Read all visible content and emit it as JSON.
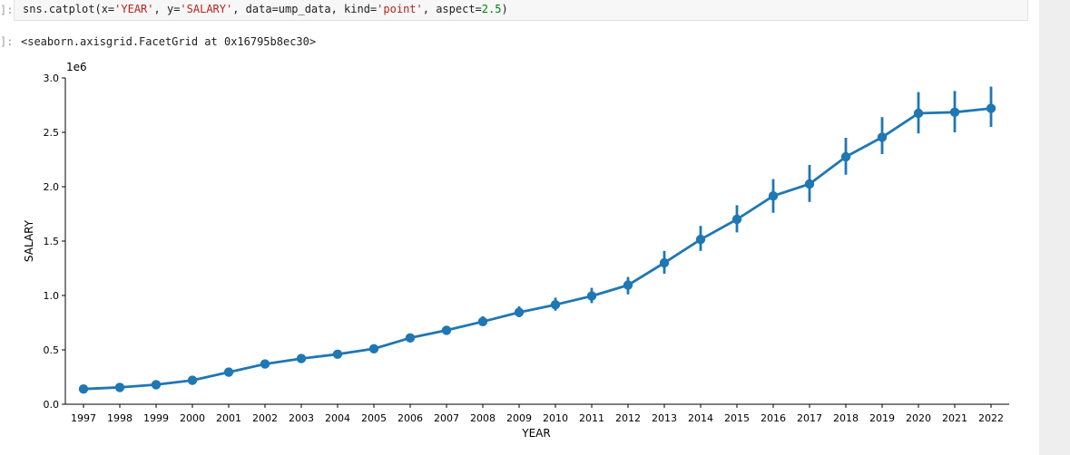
{
  "notebook": {
    "input_prompt": "]:",
    "output_prompt": "]:",
    "code": {
      "func": "sns.catplot(",
      "x_kw": "x=",
      "x_val": "'YEAR'",
      "y_kw": ", y=",
      "y_val": "'SALARY'",
      "data_kw": ", data=ump_data, kind=",
      "kind_val": "'point'",
      "aspect_kw": ", aspect=",
      "aspect_val": "2.5",
      "close": ")"
    },
    "output": "<seaborn.axisgrid.FacetGrid at 0x16795b8ec30>"
  },
  "colors": {
    "series": "#1f77b4",
    "code_string": "#ba2121",
    "code_number": "#008000"
  },
  "chart_data": {
    "type": "line",
    "xlabel": "YEAR",
    "ylabel": "SALARY",
    "offset_label": "1e6",
    "ylim": [
      0.0,
      3.0
    ],
    "y_ticks": [
      "0.0",
      "0.5",
      "1.0",
      "1.5",
      "2.0",
      "2.5",
      "3.0"
    ],
    "grid": false,
    "categories": [
      "1997",
      "1998",
      "1999",
      "2000",
      "2001",
      "2002",
      "2003",
      "2004",
      "2005",
      "2006",
      "2007",
      "2008",
      "2009",
      "2010",
      "2011",
      "2012",
      "2013",
      "2014",
      "2015",
      "2016",
      "2017",
      "2018",
      "2019",
      "2020",
      "2021",
      "2022"
    ],
    "values": [
      0.14,
      0.155,
      0.18,
      0.22,
      0.295,
      0.37,
      0.42,
      0.46,
      0.51,
      0.61,
      0.68,
      0.76,
      0.845,
      0.915,
      0.995,
      1.095,
      1.3,
      1.515,
      1.7,
      1.915,
      2.025,
      2.275,
      2.455,
      2.675,
      2.685,
      2.72
    ],
    "ci_low": [
      0.125,
      0.14,
      0.16,
      0.2,
      0.27,
      0.35,
      0.4,
      0.44,
      0.49,
      0.58,
      0.64,
      0.72,
      0.8,
      0.86,
      0.93,
      1.01,
      1.2,
      1.41,
      1.58,
      1.76,
      1.86,
      2.11,
      2.3,
      2.49,
      2.5,
      2.55
    ],
    "ci_high": [
      0.155,
      0.17,
      0.2,
      0.24,
      0.32,
      0.39,
      0.44,
      0.48,
      0.53,
      0.65,
      0.72,
      0.81,
      0.9,
      0.98,
      1.07,
      1.17,
      1.41,
      1.64,
      1.83,
      2.07,
      2.2,
      2.45,
      2.64,
      2.87,
      2.88,
      2.92
    ]
  }
}
